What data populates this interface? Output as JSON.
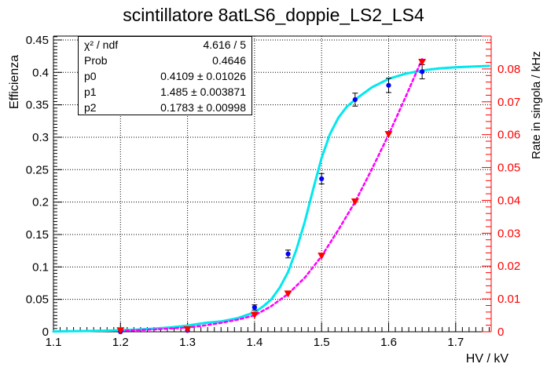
{
  "title": "scintillatore 8atLS6_doppie_LS2_LS4",
  "stats_box": {
    "rows": [
      {
        "label": "χ² / ndf",
        "value": "4.616 / 5"
      },
      {
        "label": "Prob",
        "value": "0.4646"
      },
      {
        "label": "p0",
        "value": "0.4109 ± 0.01026"
      },
      {
        "label": "p1",
        "value": "1.485 ± 0.003871"
      },
      {
        "label": "p2",
        "value": "0.1783 ± 0.00998"
      }
    ]
  },
  "chart_data": {
    "type": "line",
    "title": "scintillatore 8atLS6_doppie_LS2_LS4",
    "xlabel": "HV / kV",
    "ylabel_left": "Efficienza",
    "ylabel_right": "Rate in singola / kHz",
    "xlim": [
      1.1,
      1.753
    ],
    "ylim_left": [
      0,
      0.456
    ],
    "ylim_right": [
      0,
      0.09
    ],
    "grid": true,
    "x_ticks": [
      1.1,
      1.2,
      1.3,
      1.4,
      1.5,
      1.6,
      1.7
    ],
    "x_tick_labels": [
      "1.1",
      "1.2",
      "1.3",
      "1.4",
      "1.5",
      "1.6",
      "1.7"
    ],
    "x_minor_step": 0.01,
    "y_ticks_left": [
      0,
      0.05,
      0.1,
      0.15,
      0.2,
      0.25,
      0.3,
      0.35,
      0.4,
      0.45
    ],
    "y_tick_labels_left": [
      "0",
      "0.05",
      "0.1",
      "0.15",
      "0.2",
      "0.25",
      "0.3",
      "0.35",
      "0.4",
      "0.45"
    ],
    "y_left_minor_step": 0.005,
    "y_ticks_right": [
      0,
      0.01,
      0.02,
      0.03,
      0.04,
      0.05,
      0.06,
      0.07,
      0.08
    ],
    "y_tick_labels_right": [
      "0",
      "0.01",
      "0.02",
      "0.03",
      "0.04",
      "0.05",
      "0.06",
      "0.07",
      "0.08"
    ],
    "y_right_minor_step": 0.002,
    "colors": {
      "frame": "#000000",
      "grid": "#000000",
      "efficiency_marker": "#0000ff",
      "error_bar": "#000000",
      "fit_curve": "#00e8ee",
      "rate_marker": "#ff0000",
      "rate_curve": "#ff00ff",
      "axis_right": "#ff0000"
    },
    "series": [
      {
        "name": "fit_sigmoid_efficienza",
        "plot": "curve",
        "style": "solid",
        "axis": "left",
        "color_key": "fit_curve",
        "width": 3,
        "x": [
          1.1,
          1.125,
          1.15,
          1.175,
          1.2,
          1.225,
          1.25,
          1.275,
          1.3,
          1.325,
          1.35,
          1.375,
          1.4,
          1.4125,
          1.425,
          1.4375,
          1.45,
          1.4625,
          1.475,
          1.4875,
          1.5,
          1.5125,
          1.525,
          1.5375,
          1.55,
          1.575,
          1.6,
          1.625,
          1.65,
          1.675,
          1.7,
          1.725,
          1.75
        ],
        "y": [
          0.0005,
          0.0008,
          0.0012,
          0.0017,
          0.0024,
          0.0034,
          0.0048,
          0.0068,
          0.0095,
          0.0135,
          0.016,
          0.021,
          0.03,
          0.039,
          0.05,
          0.068,
          0.092,
          0.127,
          0.17,
          0.22,
          0.268,
          0.305,
          0.33,
          0.347,
          0.358,
          0.377,
          0.39,
          0.398,
          0.403,
          0.406,
          0.408,
          0.409,
          0.41
        ]
      },
      {
        "name": "rate_interp_curve",
        "plot": "curve",
        "style": "dashed",
        "axis": "right",
        "color_key": "rate_curve",
        "width": 2.6,
        "x": [
          1.2,
          1.225,
          1.25,
          1.275,
          1.3,
          1.325,
          1.35,
          1.375,
          1.4,
          1.425,
          1.45,
          1.475,
          1.5,
          1.525,
          1.55,
          1.575,
          1.6,
          1.625,
          1.65
        ],
        "y": [
          0.0003,
          0.0005,
          0.0007,
          0.001,
          0.0013,
          0.0019,
          0.0027,
          0.0037,
          0.005,
          0.0078,
          0.0115,
          0.0165,
          0.023,
          0.031,
          0.0395,
          0.0495,
          0.06,
          0.0713,
          0.083
        ]
      },
      {
        "name": "efficienza_data",
        "plot": "points_with_errors",
        "marker": "filled-circle",
        "axis": "left",
        "color_key": "efficiency_marker",
        "x": [
          1.2,
          1.3,
          1.4,
          1.45,
          1.5,
          1.55,
          1.6,
          1.65
        ],
        "y": [
          0.0,
          0.002,
          0.0375,
          0.12,
          0.236,
          0.358,
          0.38,
          0.401
        ],
        "yerr": [
          0.001,
          0.001,
          0.004,
          0.006,
          0.008,
          0.01,
          0.011,
          0.011
        ]
      },
      {
        "name": "rate_in_singola_data",
        "plot": "points",
        "marker": "triangle-down",
        "axis": "right",
        "color_key": "rate_marker",
        "x": [
          1.2,
          1.3,
          1.4,
          1.45,
          1.5,
          1.55,
          1.6,
          1.65
        ],
        "y": [
          0.0003,
          0.0006,
          0.005,
          0.0115,
          0.023,
          0.0395,
          0.06,
          0.082
        ]
      }
    ]
  }
}
